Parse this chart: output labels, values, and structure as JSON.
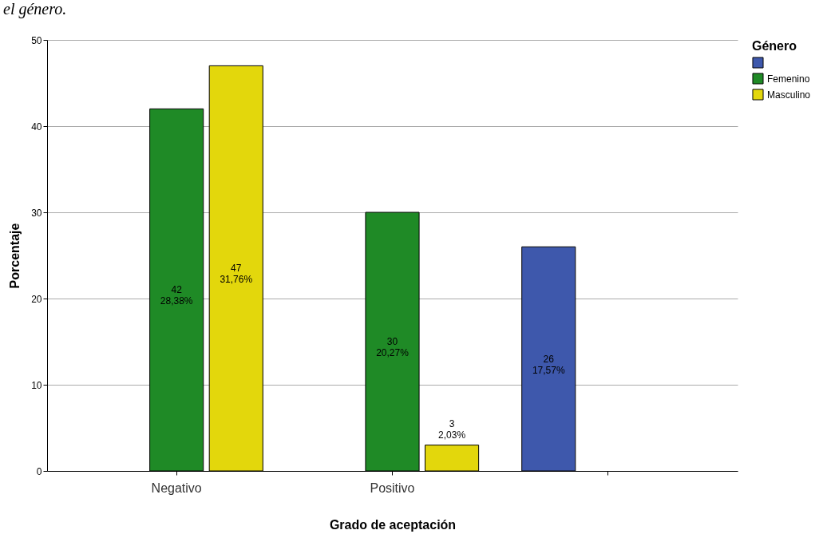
{
  "chart_data": {
    "type": "bar",
    "annotations": [
      "el género."
    ],
    "xlabel": "Grado de aceptación",
    "ylabel": "Porcentaje",
    "legend_title": "Género",
    "categories": [
      "Negativo",
      "Positivo",
      null
    ],
    "series": [
      {
        "color": "#3e58ac",
        "values": [
          null,
          null,
          26
        ],
        "value_labels": [
          null,
          null,
          "26\n17,57%"
        ]
      },
      {
        "name": "Femenino",
        "color": "#1f8a26",
        "values": [
          42,
          30,
          null
        ],
        "value_labels": [
          "42\n28,38%",
          "30\n20,27%",
          null
        ]
      },
      {
        "name": "Masculino",
        "color": "#e3d70c",
        "values": [
          47,
          3,
          null
        ],
        "value_labels": [
          "47\n31,76%",
          "3\n2,03%",
          null
        ]
      }
    ],
    "ylim": [
      0,
      50
    ],
    "yticks": [
      0,
      10,
      20,
      30,
      40,
      50
    ],
    "grid": "y",
    "legend": "top right"
  }
}
